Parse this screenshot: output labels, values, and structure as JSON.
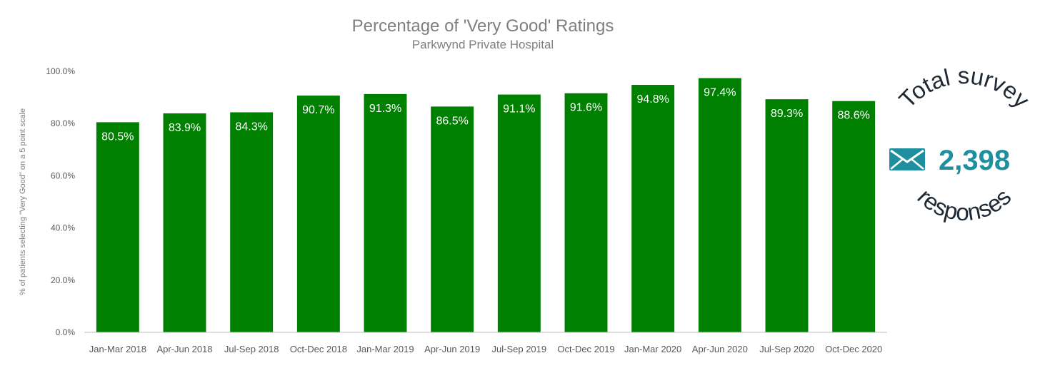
{
  "chart_data": {
    "type": "bar",
    "title": "Percentage of 'Very Good' Ratings",
    "subtitle": "Parkwynd Private Hospital",
    "xlabel": "",
    "ylabel": "% of patients selecting \"Very Good\" on a 5 point scale",
    "ylim": [
      0,
      100
    ],
    "yticks": [
      "0.0%",
      "20.0%",
      "40.0%",
      "60.0%",
      "80.0%",
      "100.0%"
    ],
    "grid": false,
    "legend": "none",
    "categories": [
      "Jan-Mar 2018",
      "Apr-Jun 2018",
      "Jul-Sep 2018",
      "Oct-Dec 2018",
      "Jan-Mar 2019",
      "Apr-Jun 2019",
      "Jul-Sep 2019",
      "Oct-Dec 2019",
      "Jan-Mar 2020",
      "Apr-Jun 2020",
      "Jul-Sep 2020",
      "Oct-Dec 2020"
    ],
    "values": [
      80.5,
      83.9,
      84.3,
      90.7,
      91.3,
      86.5,
      91.1,
      91.6,
      94.8,
      97.4,
      89.3,
      88.6
    ],
    "data_labels": [
      "80.5%",
      "83.9%",
      "84.3%",
      "90.7%",
      "91.3%",
      "86.5%",
      "91.1%",
      "91.6%",
      "94.8%",
      "97.4%",
      "89.3%",
      "88.6%"
    ],
    "bar_color": "#008000",
    "axis_color": "#bfbfbf"
  },
  "badge": {
    "top_text": "Total survey",
    "number": "2,398",
    "bottom_text": "responses",
    "icon": "envelope-icon",
    "number_color": "#1f8fa0",
    "icon_color": "#1f8fa0"
  }
}
